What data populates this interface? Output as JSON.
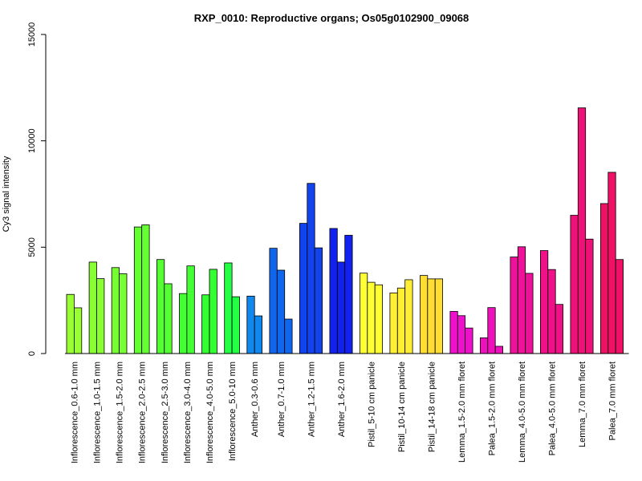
{
  "chart_data": {
    "type": "bar",
    "title": "RXP_0010: Reproductive organs; Os05g0102900_09068",
    "xlabel": "",
    "ylabel": "Cy3 signal intensity",
    "ylim": [
      0,
      15000
    ],
    "yticks": [
      0,
      5000,
      10000,
      15000
    ],
    "grid": false,
    "groups": [
      {
        "label": "Inflorescence_0.6-1.0 mm",
        "color": "#99FF33",
        "values": [
          2780,
          2150
        ]
      },
      {
        "label": "Inflorescence_1.0-1.5 mm",
        "color": "#88FF33",
        "values": [
          4300,
          3520
        ]
      },
      {
        "label": "Inflorescence_1.5-2.0 mm",
        "color": "#77FF33",
        "values": [
          4040,
          3750
        ]
      },
      {
        "label": "Inflorescence_2.0-2.5 mm",
        "color": "#66FF33",
        "values": [
          5950,
          6050
        ]
      },
      {
        "label": "Inflorescence_2.5-3.0 mm",
        "color": "#55FF33",
        "values": [
          4420,
          3280
        ]
      },
      {
        "label": "Inflorescence_3.0-4.0 mm",
        "color": "#44FF33",
        "values": [
          2820,
          4120
        ]
      },
      {
        "label": "Inflorescence_4.0-5.0 mm",
        "color": "#33FF33",
        "values": [
          2760,
          3960
        ]
      },
      {
        "label": "Inflorescence_5.0-10 mm",
        "color": "#22FF44",
        "values": [
          4260,
          2670
        ]
      },
      {
        "label": "Anther_0.3-0.6 mm",
        "color": "#1188EE",
        "values": [
          2700,
          1770
        ]
      },
      {
        "label": "Anther_0.7-1.0 mm",
        "color": "#1166EE",
        "values": [
          4950,
          3920,
          1620
        ]
      },
      {
        "label": "Anther_1.2-1.5 mm",
        "color": "#1144EE",
        "values": [
          6120,
          8000,
          4970
        ]
      },
      {
        "label": "Anther_1.6-2.0 mm",
        "color": "#1122EE",
        "values": [
          5880,
          4300,
          5560
        ]
      },
      {
        "label": "Pistil_5-10 cm panicle",
        "color": "#FFFF33",
        "values": [
          3780,
          3350,
          3230
        ]
      },
      {
        "label": "Pistil_10-14 cm panicle",
        "color": "#FFEE33",
        "values": [
          2850,
          3080,
          3470
        ]
      },
      {
        "label": "Pistil_14-18 cm panicle",
        "color": "#FFDD33",
        "values": [
          3670,
          3510,
          3510
        ]
      },
      {
        "label": "Lemma_1.5-2.0 mm floret",
        "color": "#EE11CC",
        "values": [
          1980,
          1780,
          1200
        ]
      },
      {
        "label": "Palea_1.5-2.0 mm floret",
        "color": "#EE11BB",
        "values": [
          740,
          2160,
          340
        ]
      },
      {
        "label": "Lemma_4.0-5.0 mm floret",
        "color": "#EE1199",
        "values": [
          4540,
          5020,
          3770
        ]
      },
      {
        "label": "Palea_4.0-5.0 mm floret",
        "color": "#EE1188",
        "values": [
          4840,
          3950,
          2310
        ]
      },
      {
        "label": "Lemma_7.0 mm floret",
        "color": "#EE1177",
        "values": [
          6500,
          11550,
          5380
        ]
      },
      {
        "label": "Palea_7.0 mm floret",
        "color": "#EE1166",
        "values": [
          7050,
          8520,
          4420
        ]
      }
    ]
  }
}
